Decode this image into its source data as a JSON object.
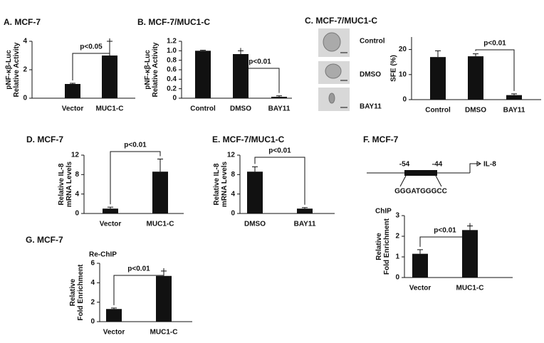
{
  "chart_data": [
    {
      "type": "bar",
      "title": "A.  MCF-7",
      "ylabel": [
        "pNF-κβ-Luc",
        "Relative Activity"
      ],
      "categories": [
        "Vector",
        "MUC1-C"
      ],
      "values": [
        1.0,
        3.0
      ],
      "errors": [
        0.05,
        1.0
      ],
      "ylim": [
        0,
        4
      ],
      "yticks": [
        0,
        2,
        4
      ],
      "annotation": "p<0.05",
      "color": "#111111"
    },
    {
      "type": "bar",
      "title": "B.  MCF-7/MUC1-C",
      "ylabel": [
        "pNF-κβ-Luc",
        "Relative Activity"
      ],
      "categories": [
        "Control",
        "DMSO",
        "BAY11"
      ],
      "values": [
        1.0,
        0.93,
        0.03
      ],
      "errors": [
        0.01,
        0.07,
        0.02
      ],
      "ylim": [
        0,
        1.2
      ],
      "yticks": [
        0,
        0.2,
        0.4,
        0.6,
        0.8,
        {
          "value": 1,
          "label": "1.0"
        },
        1.2
      ],
      "annotation": "p<0.01",
      "color": "#111111"
    },
    {
      "type": "bar",
      "title": "C.  MCF-7/MUC1-C",
      "image_labels": [
        "Control",
        "DMSO",
        "BAY11"
      ],
      "ylabel": [
        "SFE (%)"
      ],
      "categories": [
        "Control",
        "DMSO",
        "BAY11"
      ],
      "values": [
        17,
        17.3,
        1.8
      ],
      "errors": [
        2.5,
        1.0,
        0.5
      ],
      "ylim": [
        0,
        25
      ],
      "yticks": [
        0,
        10,
        20
      ],
      "annotation": "p<0.01",
      "color": "#111111"
    },
    {
      "type": "bar",
      "title": "D.  MCF-7",
      "ylabel": [
        "Relative IL-8",
        "mRNA Levels"
      ],
      "categories": [
        "Vector",
        "MUC1-C"
      ],
      "values": [
        1.0,
        8.6
      ],
      "errors": [
        0.3,
        2.6
      ],
      "ylim": [
        0,
        12
      ],
      "yticks": [
        0,
        4,
        8,
        12
      ],
      "annotation": "p<0.01",
      "color": "#111111"
    },
    {
      "type": "bar",
      "title": "E.  MCF-7/MUC1-C",
      "ylabel": [
        "Relative IL-8",
        "mRNA Levels"
      ],
      "categories": [
        "DMSO",
        "BAY11"
      ],
      "values": [
        8.6,
        1.0
      ],
      "errors": [
        1.0,
        0.2
      ],
      "ylim": [
        0,
        12
      ],
      "yticks": [
        0,
        4,
        8,
        12
      ],
      "annotation": "p<0.01",
      "color": "#111111"
    },
    {
      "type": "bar",
      "title": "F.  MCF-7",
      "diagram": {
        "left": "-54",
        "right": "-44",
        "gene": "IL-8",
        "sequence": "GGGATGGGCC"
      },
      "subtitle": "ChIP",
      "ylabel": [
        "Relative",
        "Fold Enrichment"
      ],
      "categories": [
        "Vector",
        "MUC1-C"
      ],
      "values": [
        1.15,
        2.3
      ],
      "errors": [
        0.2,
        0.2
      ],
      "ylim": [
        0,
        3
      ],
      "yticks": [
        0,
        1,
        2,
        3
      ],
      "annotation": "p<0.01",
      "color": "#111111"
    },
    {
      "type": "bar",
      "title": "G.  MCF-7",
      "subtitle": "Re-ChIP",
      "ylabel": [
        "Relative",
        "Fold Enrichment"
      ],
      "categories": [
        "Vector",
        "MUC1-C"
      ],
      "values": [
        1.3,
        4.7
      ],
      "errors": [
        0.1,
        0.5
      ],
      "ylim": [
        0,
        6
      ],
      "yticks": [
        0,
        2,
        4,
        6
      ],
      "annotation": "p<0.01",
      "color": "#111111"
    }
  ]
}
